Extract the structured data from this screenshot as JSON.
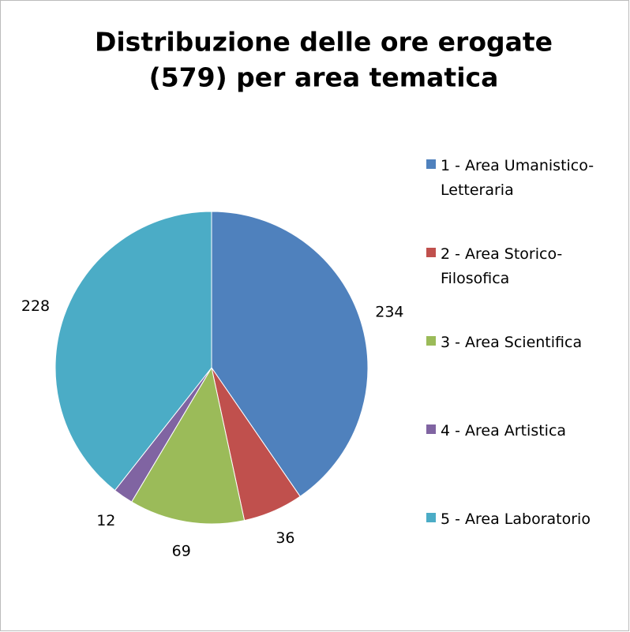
{
  "chart_data": {
    "type": "pie",
    "title": [
      "Distribuzione delle ore erogate",
      "(579) per area tematica"
    ],
    "categories": [
      "1 - Area Umanistico-Letteraria",
      "2 - Area Storico-Filosofica",
      "3 - Area Scientifica",
      "4 - Area Artistica",
      "5 - Area Laboratorio"
    ],
    "values": [
      234,
      36,
      69,
      12,
      228
    ],
    "colors": [
      "#4f81bd",
      "#c0504d",
      "#9bbb59",
      "#8064a2",
      "#4bacc6"
    ],
    "legend": "right"
  }
}
